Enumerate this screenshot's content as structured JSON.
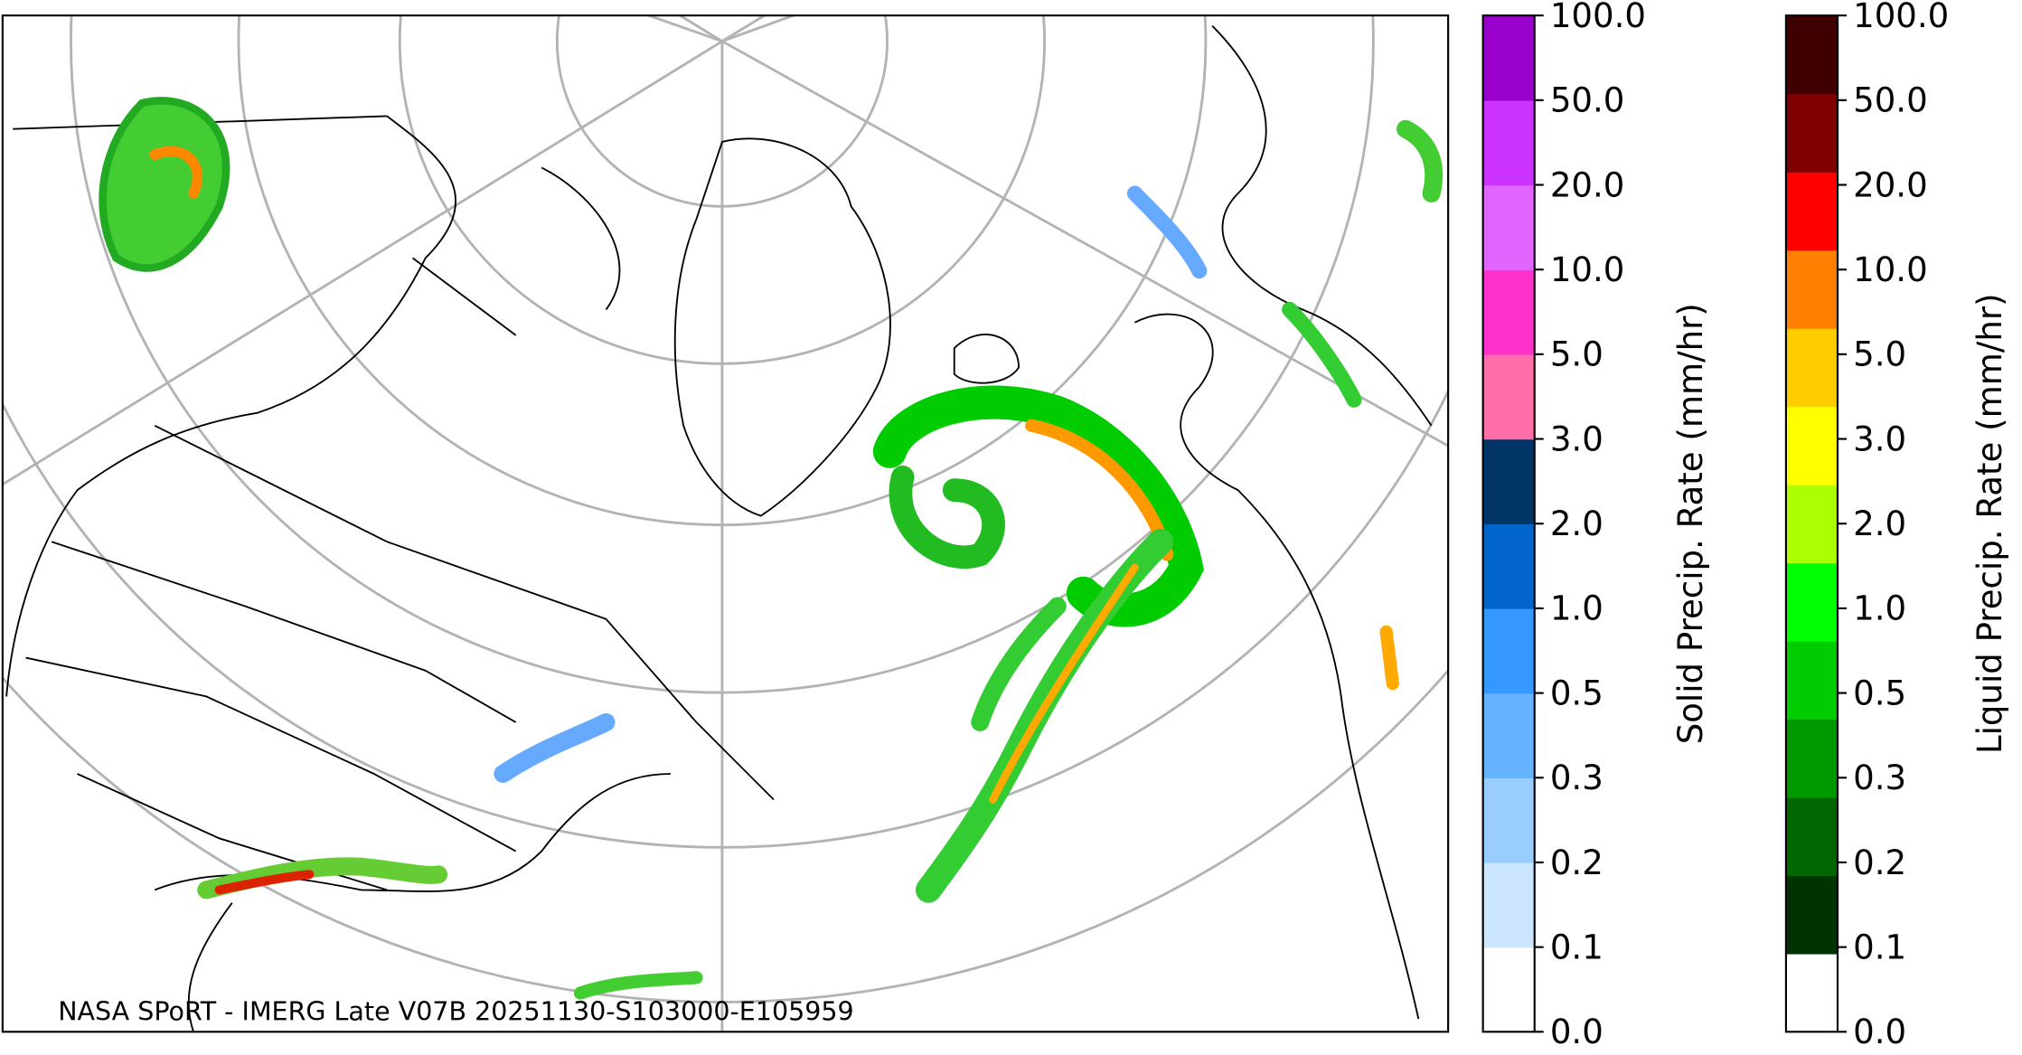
{
  "map": {
    "credit": "NASA SPoRT - IMERG Late V07B 20251130-S103000-E105959"
  },
  "colorbars": [
    {
      "label": "Solid Precip. Rate (mm/hr)",
      "ticks": [
        "0.0",
        "0.1",
        "0.2",
        "0.3",
        "0.5",
        "1.0",
        "2.0",
        "3.0",
        "5.0",
        "10.0",
        "20.0",
        "50.0",
        "100.0"
      ],
      "colors": [
        "#ffffff",
        "#cce6ff",
        "#99ccff",
        "#66b2ff",
        "#3399ff",
        "#0066cc",
        "#003366",
        "#ff6ea8",
        "#ff33cc",
        "#e066ff",
        "#cc33ff",
        "#9900cc"
      ]
    },
    {
      "label": "Liquid Precip. Rate (mm/hr)",
      "ticks": [
        "0.0",
        "0.1",
        "0.2",
        "0.3",
        "0.5",
        "1.0",
        "2.0",
        "3.0",
        "5.0",
        "10.0",
        "20.0",
        "50.0",
        "100.0"
      ],
      "colors": [
        "#ffffff",
        "#003300",
        "#006600",
        "#009900",
        "#00cc00",
        "#00ff00",
        "#aaff00",
        "#ffff00",
        "#ffcc00",
        "#ff8000",
        "#ff0000",
        "#800000",
        "#400000"
      ]
    }
  ]
}
